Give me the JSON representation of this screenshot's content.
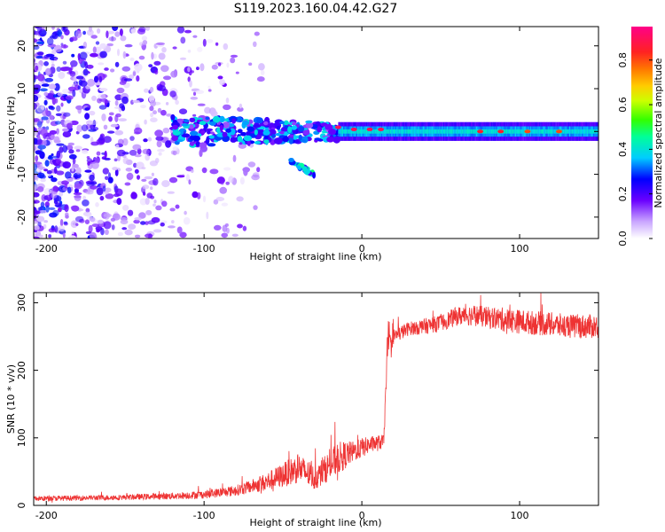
{
  "figure": {
    "title": "S119.2023.160.04.42.G27"
  },
  "chart_data": [
    {
      "type": "heatmap",
      "title": "S119.2023.160.04.42.G27",
      "xlabel": "Height of straight line (km)",
      "ylabel": "Frequency (Hz)",
      "xlim": [
        -208,
        150
      ],
      "ylim": [
        -25,
        24.5
      ],
      "xticks": [
        -200,
        -100,
        0,
        100
      ],
      "yticks": [
        -20,
        -10,
        0,
        10,
        20
      ],
      "colorbar": {
        "label": "Normalized spectral amplitude",
        "range": [
          0.0,
          0.95
        ],
        "ticks": [
          0.0,
          0.2,
          0.4,
          0.6,
          0.8
        ]
      },
      "grid": false,
      "description_of_values": {
        "scattered_noise_region_x": [
          -208,
          -120
        ],
        "ridge_onset_x": -15,
        "ridge_frequency_hz": 0,
        "ridge_amplitude": 0.4,
        "ridge_peaks": [
          {
            "x": -15,
            "freq": 1,
            "amplitude": 0.9
          },
          {
            "x": -5,
            "freq": 0.5,
            "amplitude": 0.9
          },
          {
            "x": 5,
            "freq": 0.5,
            "amplitude": 0.9
          },
          {
            "x": 12,
            "freq": 0.5,
            "amplitude": 0.9
          },
          {
            "x": 75,
            "freq": 0,
            "amplitude": 0.85
          },
          {
            "x": 88,
            "freq": 0,
            "amplitude": 0.85
          },
          {
            "x": 105,
            "freq": 0,
            "amplitude": 0.8
          },
          {
            "x": 125,
            "freq": 0,
            "amplitude": 0.8
          }
        ],
        "side_branch": {
          "x": [
            -45,
            -30
          ],
          "freq": [
            -7,
            -10
          ]
        }
      }
    },
    {
      "type": "line",
      "xlabel": "Height of straight line (km)",
      "ylabel": "SNR (10 * v/v)",
      "xlim": [
        -208,
        150
      ],
      "ylim": [
        0,
        315
      ],
      "xticks": [
        -200,
        -100,
        0,
        100
      ],
      "yticks": [
        0,
        100,
        200,
        300
      ],
      "grid": false,
      "series": [
        {
          "color": "#ee3333",
          "x": [
            -208,
            -180,
            -150,
            -120,
            -100,
            -80,
            -70,
            -60,
            -50,
            -40,
            -35,
            -30,
            -25,
            -20,
            -15,
            -10,
            -5,
            0,
            5,
            10,
            14,
            16,
            20,
            30,
            40,
            50,
            60,
            70,
            80,
            90,
            100,
            110,
            120,
            130,
            140,
            150
          ],
          "y": [
            10,
            11,
            12,
            14,
            16,
            22,
            28,
            35,
            45,
            55,
            48,
            40,
            50,
            60,
            70,
            75,
            80,
            85,
            90,
            92,
            95,
            230,
            250,
            262,
            265,
            270,
            280,
            282,
            278,
            275,
            272,
            270,
            268,
            265,
            265,
            265
          ],
          "noise_amplitude": [
            4,
            4,
            4,
            5,
            6,
            8,
            10,
            14,
            18,
            22,
            20,
            18,
            20,
            22,
            24,
            20,
            15,
            15,
            12,
            12,
            10,
            20,
            12,
            10,
            12,
            12,
            14,
            16,
            16,
            18,
            18,
            18,
            18,
            18,
            18,
            18
          ]
        }
      ]
    }
  ]
}
